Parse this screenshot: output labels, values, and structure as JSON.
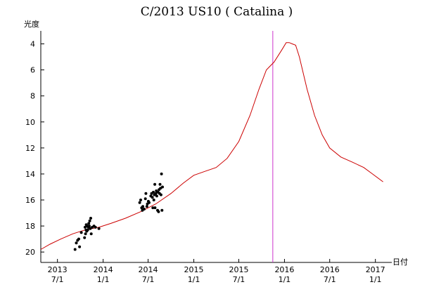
{
  "chart_data": {
    "type": "line",
    "title": "C/2013 US10 ( Catalina )",
    "ylabel": "光度",
    "xlabel": "日付",
    "ylim": [
      20.8,
      3.0
    ],
    "y_inverted": true,
    "xlim": [
      "2013-04-25",
      "2017-03-08"
    ],
    "y_ticks": [
      4,
      6,
      8,
      10,
      12,
      14,
      16,
      18,
      20
    ],
    "x_ticks": [
      {
        "date": "2013-07-01",
        "year": "2013",
        "month": "7/1"
      },
      {
        "date": "2014-01-01",
        "year": "2014",
        "month": "1/1"
      },
      {
        "date": "2014-07-01",
        "year": "2014",
        "month": "7/1"
      },
      {
        "date": "2015-01-01",
        "year": "2015",
        "month": "1/1"
      },
      {
        "date": "2015-07-01",
        "year": "2015",
        "month": "7/1"
      },
      {
        "date": "2016-01-01",
        "year": "2016",
        "month": "1/1"
      },
      {
        "date": "2016-07-01",
        "year": "2016",
        "month": "7/1"
      },
      {
        "date": "2017-01-01",
        "year": "2017",
        "month": "1/1"
      }
    ],
    "vertical_marker": {
      "date": "2015-11-15",
      "color": "#cc33cc"
    },
    "series": [
      {
        "kind": "line",
        "color": "#cc0000",
        "points": [
          [
            "2013-04-25",
            19.8
          ],
          [
            "2013-06-01",
            19.4
          ],
          [
            "2013-07-15",
            19.0
          ],
          [
            "2013-09-01",
            18.6
          ],
          [
            "2013-10-20",
            18.3
          ],
          [
            "2013-12-15",
            18.1
          ],
          [
            "2014-02-01",
            17.8
          ],
          [
            "2014-04-01",
            17.4
          ],
          [
            "2014-06-01",
            16.9
          ],
          [
            "2014-08-01",
            16.3
          ],
          [
            "2014-10-01",
            15.5
          ],
          [
            "2014-11-20",
            14.7
          ],
          [
            "2015-01-01",
            14.1
          ],
          [
            "2015-02-15",
            13.8
          ],
          [
            "2015-04-01",
            13.5
          ],
          [
            "2015-05-15",
            12.8
          ],
          [
            "2015-07-01",
            11.5
          ],
          [
            "2015-08-15",
            9.5
          ],
          [
            "2015-09-20",
            7.5
          ],
          [
            "2015-10-20",
            6.0
          ],
          [
            "2015-11-20",
            5.4
          ],
          [
            "2015-12-20",
            4.5
          ],
          [
            "2016-01-08",
            3.9
          ],
          [
            "2016-01-20",
            3.9
          ],
          [
            "2016-02-01",
            4.0
          ],
          [
            "2016-02-15",
            4.1
          ],
          [
            "2016-03-01",
            5.0
          ],
          [
            "2016-04-01",
            7.5
          ],
          [
            "2016-05-01",
            9.5
          ],
          [
            "2016-06-01",
            11.0
          ],
          [
            "2016-07-01",
            12.0
          ],
          [
            "2016-08-15",
            12.7
          ],
          [
            "2016-10-01",
            13.1
          ],
          [
            "2016-11-15",
            13.5
          ],
          [
            "2016-12-20",
            14.0
          ],
          [
            "2017-02-01",
            14.6
          ]
        ]
      },
      {
        "kind": "scatter",
        "color": "#000000",
        "points": [
          [
            "2013-09-10",
            19.8
          ],
          [
            "2013-09-15",
            19.3
          ],
          [
            "2013-09-20",
            19.1
          ],
          [
            "2013-09-25",
            19.0
          ],
          [
            "2013-09-28",
            19.6
          ],
          [
            "2013-10-05",
            18.5
          ],
          [
            "2013-10-18",
            18.9
          ],
          [
            "2013-10-20",
            18.1
          ],
          [
            "2013-10-22",
            18.6
          ],
          [
            "2013-10-24",
            18.3
          ],
          [
            "2013-10-25",
            17.9
          ],
          [
            "2013-10-27",
            18.4
          ],
          [
            "2013-10-29",
            18.0
          ],
          [
            "2013-10-31",
            18.3
          ],
          [
            "2013-11-02",
            18.1
          ],
          [
            "2013-11-04",
            17.8
          ],
          [
            "2013-11-06",
            18.0
          ],
          [
            "2013-11-08",
            17.6
          ],
          [
            "2013-11-10",
            18.2
          ],
          [
            "2013-11-12",
            17.4
          ],
          [
            "2013-11-14",
            18.6
          ],
          [
            "2013-11-18",
            18.1
          ],
          [
            "2013-11-25",
            18.0
          ],
          [
            "2013-12-01",
            18.1
          ],
          [
            "2013-12-15",
            18.2
          ],
          [
            "2014-05-28",
            16.2
          ],
          [
            "2014-06-01",
            16.0
          ],
          [
            "2014-06-05",
            16.6
          ],
          [
            "2014-06-08",
            16.8
          ],
          [
            "2014-06-10",
            16.5
          ],
          [
            "2014-06-15",
            16.7
          ],
          [
            "2014-06-20",
            15.9
          ],
          [
            "2014-06-22",
            15.5
          ],
          [
            "2014-06-26",
            16.5
          ],
          [
            "2014-06-28",
            16.3
          ],
          [
            "2014-07-02",
            16.1
          ],
          [
            "2014-07-05",
            16.2
          ],
          [
            "2014-07-12",
            15.7
          ],
          [
            "2014-07-15",
            15.5
          ],
          [
            "2014-07-18",
            15.8
          ],
          [
            "2014-07-20",
            16.6
          ],
          [
            "2014-07-22",
            15.4
          ],
          [
            "2014-07-24",
            16.0
          ],
          [
            "2014-07-26",
            15.6
          ],
          [
            "2014-07-28",
            14.8
          ],
          [
            "2014-07-29",
            16.6
          ],
          [
            "2014-08-01",
            15.5
          ],
          [
            "2014-08-03",
            15.3
          ],
          [
            "2014-08-05",
            15.7
          ],
          [
            "2014-08-08",
            16.8
          ],
          [
            "2014-08-10",
            15.4
          ],
          [
            "2014-08-12",
            16.9
          ],
          [
            "2014-08-14",
            15.2
          ],
          [
            "2014-08-16",
            15.5
          ],
          [
            "2014-08-18",
            14.8
          ],
          [
            "2014-08-20",
            15.1
          ],
          [
            "2014-08-22",
            15.6
          ],
          [
            "2014-08-24",
            14.0
          ],
          [
            "2014-08-26",
            16.8
          ],
          [
            "2014-08-28",
            15.0
          ]
        ]
      }
    ]
  }
}
